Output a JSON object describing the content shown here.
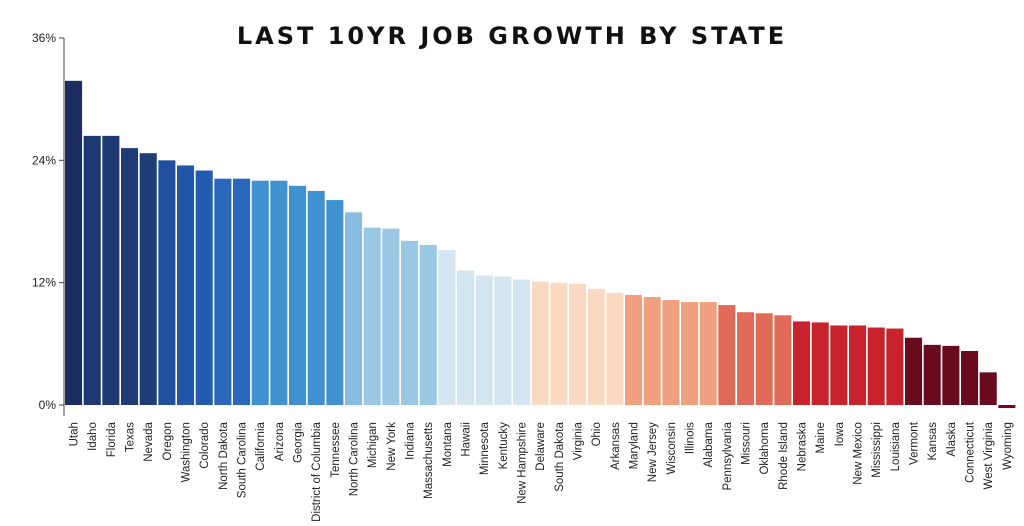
{
  "chart_data": {
    "type": "bar",
    "title": "LAST 10YR JOB GROWTH BY STATE",
    "xlabel": "",
    "ylabel": "",
    "ylim": [
      -0.5,
      36
    ],
    "yticks": [
      0,
      12,
      24,
      36
    ],
    "ytick_labels": [
      "0%",
      "12%",
      "24%",
      "36%"
    ],
    "grid": false,
    "categories": [
      "Utah",
      "Idaho",
      "Florida",
      "Texas",
      "Nevada",
      "Oregon",
      "Washington",
      "Colorado",
      "North Dakota",
      "South Carolina",
      "California",
      "Arizona",
      "Georgia",
      "District of Columbia",
      "Tennessee",
      "North Carolina",
      "Michigan",
      "New York",
      "Indiana",
      "Massachusetts",
      "Montana",
      "Hawaii",
      "Minnesota",
      "Kentucky",
      "New Hampshire",
      "Delaware",
      "South Dakota",
      "Virginia",
      "Ohio",
      "Arkansas",
      "Maryland",
      "New Jersey",
      "Wisconsin",
      "Illinois",
      "Alabama",
      "Pennsylvania",
      "Missouri",
      "Oklahoma",
      "Rhode Island",
      "Nebraska",
      "Maine",
      "Iowa",
      "New Mexico",
      "Mississippi",
      "Louisiana",
      "Vermont",
      "Kansas",
      "Alaska",
      "Connecticut",
      "West Virginia",
      "Wyoming"
    ],
    "values": [
      31.8,
      26.4,
      26.4,
      25.2,
      24.7,
      24.0,
      23.5,
      23.0,
      22.2,
      22.2,
      22.0,
      22.0,
      21.5,
      21.0,
      20.1,
      18.9,
      17.4,
      17.3,
      16.1,
      15.7,
      15.2,
      13.2,
      12.7,
      12.6,
      12.3,
      12.1,
      12.0,
      11.9,
      11.4,
      11.0,
      10.8,
      10.6,
      10.3,
      10.1,
      10.1,
      9.8,
      9.1,
      9.0,
      8.8,
      8.2,
      8.1,
      7.8,
      7.8,
      7.6,
      7.5,
      6.6,
      5.9,
      5.8,
      5.3,
      3.2,
      -0.3
    ],
    "colors": [
      "#1b2d5e",
      "#1f3a73",
      "#1f3a73",
      "#1f3b75",
      "#203c77",
      "#2150a0",
      "#2256a8",
      "#225ab0",
      "#2a68bb",
      "#2a68bb",
      "#3f91d0",
      "#3f91d0",
      "#3f91d0",
      "#3f91d0",
      "#3f91d0",
      "#87bce0",
      "#9ac8e4",
      "#9ac8e4",
      "#9ac8e4",
      "#9ac8e4",
      "#d2e5f0",
      "#d2e5f0",
      "#d2e5f0",
      "#d2e5f0",
      "#d2e5f0",
      "#fad9c3",
      "#fad9c3",
      "#fad9c3",
      "#fad9c3",
      "#fad9c3",
      "#f0a07e",
      "#f0a07e",
      "#f0a07e",
      "#f0a07e",
      "#f0a07e",
      "#df6a57",
      "#df6a57",
      "#df6a57",
      "#df6a57",
      "#c8232c",
      "#c8232c",
      "#c8232c",
      "#c8232c",
      "#c8232c",
      "#c8232c",
      "#6a0a1e",
      "#6a0a1e",
      "#6a0a1e",
      "#6a0a1e",
      "#6a0a1e",
      "#6a0a1e"
    ]
  }
}
